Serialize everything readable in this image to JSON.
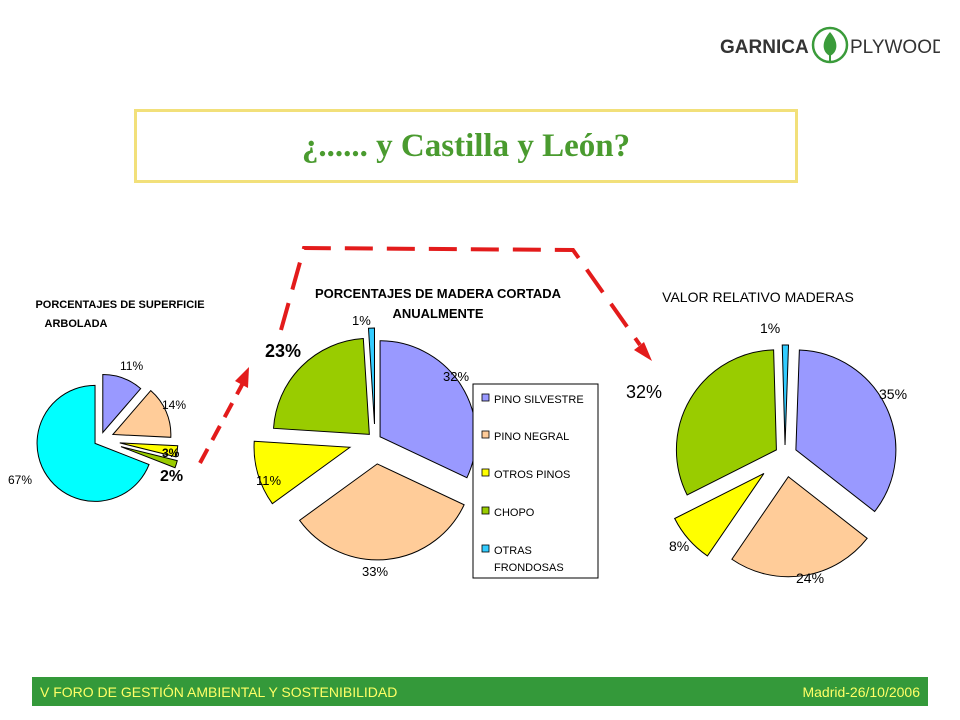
{
  "header": {
    "logo_left": "GARNICA",
    "logo_right": "PLYWOOD",
    "title": "¿...... y Castilla y León?"
  },
  "colors": {
    "pino_silvestre": "#9999ff",
    "pino_negral": "#ffcc99",
    "otros_pinos": "#ffff00",
    "chopo": "#99cc00",
    "otras_frondosas": "#33ccff",
    "superficie_main": "#00ffff",
    "arrow": "#e31b1b",
    "footer_bg": "#34993a",
    "footer_text": "#ffff66",
    "title": "#4a9b2f",
    "title_border": "#f2e07a"
  },
  "chart_data": [
    {
      "type": "pie",
      "title": "PORCENTAJES DE SUPERFICIE ARBOLADA",
      "slices": [
        {
          "label": "11%",
          "value": 11,
          "color": "#9999ff"
        },
        {
          "label": "14%",
          "value": 14,
          "color": "#ffcc99"
        },
        {
          "label": "3%",
          "value": 3,
          "color": "#ffff00"
        },
        {
          "label": "2%",
          "value": 2,
          "color": "#99cc00"
        },
        {
          "label": "67%",
          "value": 67,
          "color": "#00ffff"
        }
      ]
    },
    {
      "type": "pie",
      "title": "PORCENTAJES DE MADERA CORTADA ANUALMENTE",
      "legend_position": "right",
      "slices": [
        {
          "label": "32%",
          "value": 32,
          "color": "#9999ff"
        },
        {
          "label": "33%",
          "value": 33,
          "color": "#ffcc99"
        },
        {
          "label": "11%",
          "value": 11,
          "color": "#ffff00"
        },
        {
          "label": "23%",
          "value": 23,
          "color": "#99cc00"
        },
        {
          "label": "1%",
          "value": 1,
          "color": "#33ccff"
        }
      ],
      "legend": [
        {
          "label": "PINO SILVESTRE",
          "color": "#9999ff"
        },
        {
          "label": "PINO NEGRAL",
          "color": "#ffcc99"
        },
        {
          "label": "OTROS PINOS",
          "color": "#ffff00"
        },
        {
          "label": "CHOPO",
          "color": "#99cc00"
        },
        {
          "label": "OTRAS FRONDOSAS",
          "color": "#33ccff"
        }
      ]
    },
    {
      "type": "pie",
      "title": "VALOR RELATIVO MADERAS",
      "slices": [
        {
          "label": "35%",
          "value": 35,
          "color": "#9999ff"
        },
        {
          "label": "24%",
          "value": 24,
          "color": "#ffcc99"
        },
        {
          "label": "8%",
          "value": 8,
          "color": "#ffff00"
        },
        {
          "label": "32%",
          "value": 32,
          "color": "#99cc00"
        },
        {
          "label": "1%",
          "value": 1,
          "color": "#33ccff"
        }
      ]
    }
  ],
  "footer": {
    "left": "V FORO DE GESTIÓN AMBIENTAL Y SOSTENIBILIDAD",
    "right": "Madrid-26/10/2006"
  }
}
